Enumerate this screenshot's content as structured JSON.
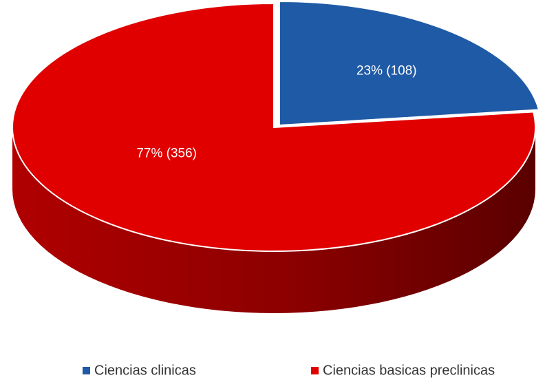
{
  "chart_data": {
    "type": "pie",
    "categories": [
      "Ciencias clinicas",
      "Ciencias basicas preclinicas"
    ],
    "values": [
      23,
      77
    ],
    "value_labels": [
      "23% (108)",
      "77% (356)"
    ],
    "colors": [
      "#1f5aa6",
      "#e00000"
    ],
    "legend": "bottom"
  }
}
